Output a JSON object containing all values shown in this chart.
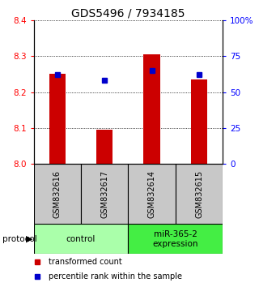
{
  "title": "GDS5496 / 7934185",
  "samples": [
    "GSM832616",
    "GSM832617",
    "GSM832614",
    "GSM832615"
  ],
  "bar_values": [
    8.25,
    8.095,
    8.305,
    8.235
  ],
  "percentile_values": [
    62,
    58,
    65,
    62
  ],
  "bar_color": "#cc0000",
  "dot_color": "#0000cc",
  "ylim_left": [
    8.0,
    8.4
  ],
  "ylim_right": [
    0,
    100
  ],
  "yticks_left": [
    8.0,
    8.1,
    8.2,
    8.3,
    8.4
  ],
  "yticks_right": [
    0,
    25,
    50,
    75,
    100
  ],
  "ytick_labels_right": [
    "0",
    "25",
    "50",
    "75",
    "100%"
  ],
  "groups": [
    {
      "label": "control",
      "color": "#aaffaa"
    },
    {
      "label": "miR-365-2\nexpression",
      "color": "#44ee44"
    }
  ],
  "protocol_label": "protocol",
  "legend_bar_label": "transformed count",
  "legend_dot_label": "percentile rank within the sample",
  "sample_box_color": "#c8c8c8",
  "bar_width": 0.35,
  "title_fontsize": 10
}
